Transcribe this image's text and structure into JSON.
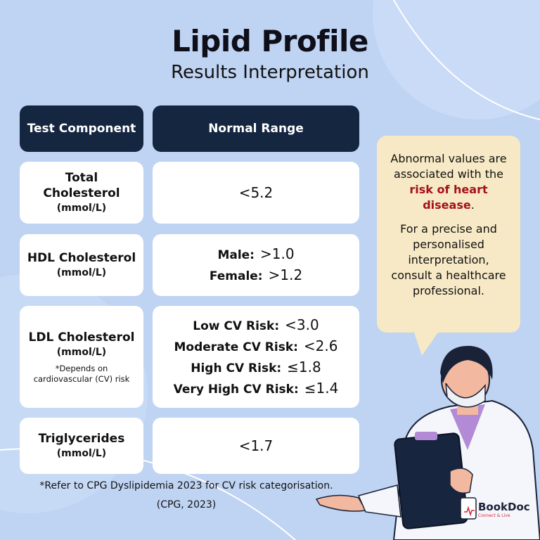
{
  "header": {
    "title": "Lipid Profile",
    "subtitle": "Results Interpretation"
  },
  "table": {
    "columns": [
      "Test Component",
      "Normal Range"
    ],
    "rows": [
      {
        "component": "Total Cholesterol",
        "unit": "(mmol/L)",
        "ranges": [
          {
            "value": "<5.2"
          }
        ]
      },
      {
        "component": "HDL Cholesterol",
        "unit": "(mmol/L)",
        "ranges": [
          {
            "label": "Male:",
            "value": ">1.0"
          },
          {
            "label": "Female:",
            "value": ">1.2"
          }
        ]
      },
      {
        "component": "LDL Cholesterol",
        "unit": "(mmol/L)",
        "note": "*Depends on cardiovascular (CV) risk",
        "ranges": [
          {
            "label": "Low CV Risk:",
            "value": "<3.0"
          },
          {
            "label": "Moderate CV Risk:",
            "value": "<2.6"
          },
          {
            "label": "High CV Risk:",
            "value": "≤1.8"
          },
          {
            "label": "Very High CV Risk:",
            "value": "≤1.4"
          }
        ]
      },
      {
        "component": "Triglycerides",
        "unit": "(mmol/L)",
        "ranges": [
          {
            "value": "<1.7"
          }
        ]
      }
    ]
  },
  "bubble": {
    "p1_before": "Abnormal values are associated with the ",
    "p1_highlight": "risk of heart disease",
    "p1_after": ".",
    "p2": "For a precise and personalised interpretation, consult a healthcare professional."
  },
  "footnote": {
    "line1": "*Refer to CPG Dyslipidemia 2023 for CV risk categorisation.",
    "line2": "(CPG, 2023)"
  },
  "logo": {
    "name": "BookDoc",
    "tagline": "Connect & Live"
  }
}
